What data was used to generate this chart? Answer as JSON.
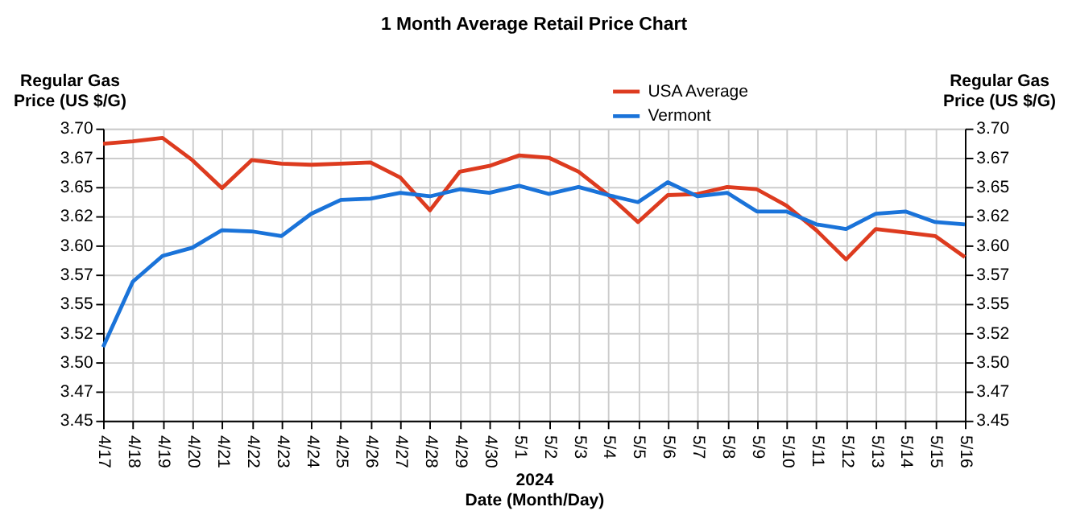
{
  "chart_data": {
    "type": "line",
    "title": "1 Month Average Retail Price Chart",
    "xlabel": "Date (Month/Day)",
    "annotations": [
      "2024"
    ],
    "ylabel": "Regular Gas\nPrice (US $/G)",
    "y2label": "Regular Gas\nPrice (US $/G)",
    "categories": [
      "4/17",
      "4/18",
      "4/19",
      "4/20",
      "4/21",
      "4/22",
      "4/23",
      "4/24",
      "4/25",
      "4/26",
      "4/27",
      "4/28",
      "4/29",
      "4/30",
      "5/1",
      "5/2",
      "5/3",
      "5/4",
      "5/5",
      "5/6",
      "5/7",
      "5/8",
      "5/9",
      "5/10",
      "5/11",
      "5/12",
      "5/13",
      "5/14",
      "5/15",
      "5/16"
    ],
    "series": [
      {
        "name": "USA Average",
        "color": "#dd3b1f",
        "values": [
          3.687,
          3.689,
          3.692,
          3.673,
          3.649,
          3.673,
          3.67,
          3.669,
          3.67,
          3.671,
          3.658,
          3.63,
          3.663,
          3.668,
          3.677,
          3.675,
          3.663,
          3.643,
          3.62,
          3.643,
          3.644,
          3.65,
          3.648,
          3.634,
          3.613,
          3.588,
          3.614,
          3.611,
          3.608,
          3.59
        ]
      },
      {
        "name": "Vermont",
        "color": "#1a73d9",
        "values": [
          3.513,
          3.569,
          3.591,
          3.598,
          3.613,
          3.612,
          3.608,
          3.627,
          3.639,
          3.64,
          3.645,
          3.642,
          3.648,
          3.645,
          3.651,
          3.644,
          3.65,
          3.643,
          3.637,
          3.654,
          3.642,
          3.645,
          3.629,
          3.629,
          3.618,
          3.614,
          3.627,
          3.629,
          3.62,
          3.618
        ]
      }
    ],
    "ylim": [
      3.45,
      3.7
    ],
    "yticks": [
      3.45,
      {
        "value": 3.475,
        "label": "3.47"
      },
      {
        "value": 3.5,
        "label": "3.50"
      },
      {
        "value": 3.525,
        "label": "3.52"
      },
      3.55,
      {
        "value": 3.575,
        "label": "3.57"
      },
      {
        "value": 3.6,
        "label": "3.60"
      },
      {
        "value": 3.625,
        "label": "3.62"
      },
      3.65,
      {
        "value": 3.675,
        "label": "3.67"
      },
      {
        "value": 3.7,
        "label": "3.70"
      }
    ],
    "y2lim": [
      3.45,
      3.7
    ],
    "y2ticks": [
      3.45,
      {
        "value": 3.475,
        "label": "3.47"
      },
      {
        "value": 3.5,
        "label": "3.50"
      },
      {
        "value": 3.525,
        "label": "3.52"
      },
      3.55,
      {
        "value": 3.575,
        "label": "3.57"
      },
      {
        "value": 3.6,
        "label": "3.60"
      },
      {
        "value": 3.625,
        "label": "3.62"
      },
      3.65,
      {
        "value": 3.675,
        "label": "3.67"
      },
      {
        "value": 3.7,
        "label": "3.70"
      }
    ],
    "grid": true,
    "legend": "top",
    "marker": "none",
    "line_style": "solid"
  }
}
